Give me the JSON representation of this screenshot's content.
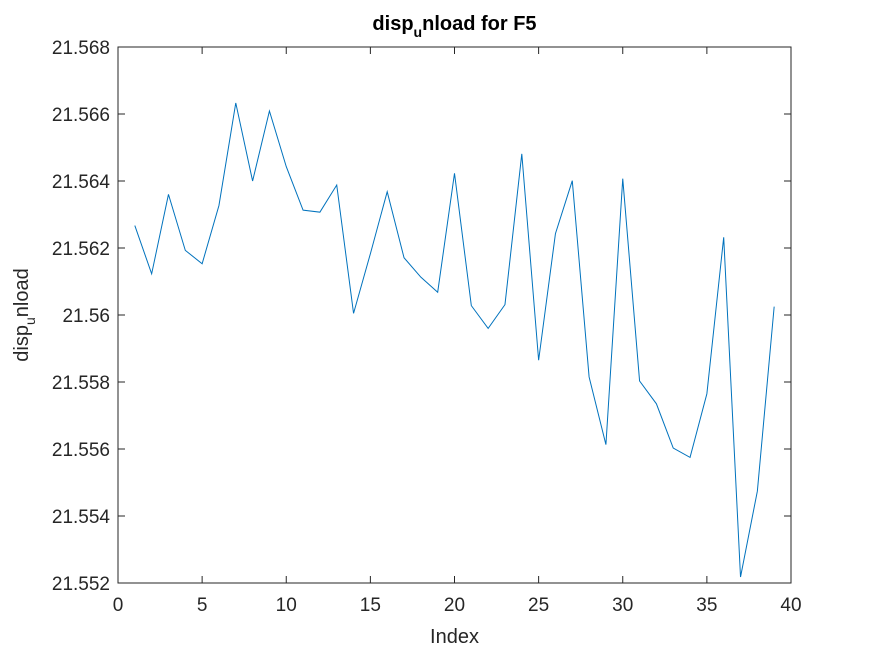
{
  "chart_data": {
    "type": "line",
    "title": {
      "main": "disp",
      "sub": "u",
      "rest": "nload for F5"
    },
    "xlabel": "Index",
    "ylabel": {
      "main": "disp",
      "sub": "u",
      "rest": "nload"
    },
    "xlim": [
      0,
      40
    ],
    "ylim": [
      21.552,
      21.568
    ],
    "xticks": [
      0,
      5,
      10,
      15,
      20,
      25,
      30,
      35,
      40
    ],
    "yticks": [
      21.552,
      21.554,
      21.556,
      21.558,
      21.56,
      21.562,
      21.564,
      21.566,
      21.568
    ],
    "xtick_labels": [
      "0",
      "5",
      "10",
      "15",
      "20",
      "25",
      "30",
      "35",
      "40"
    ],
    "ytick_labels": [
      "21.552",
      "21.554",
      "21.556",
      "21.558",
      "21.56",
      "21.562",
      "21.564",
      "21.566",
      "21.568"
    ],
    "grid": false,
    "series": [
      {
        "color": "#0072BD",
        "x": [
          1,
          2,
          3,
          4,
          5,
          6,
          7,
          8,
          9,
          10,
          11,
          12,
          13,
          14,
          15,
          16,
          17,
          18,
          19,
          20,
          21,
          22,
          23,
          24,
          25,
          26,
          27,
          28,
          29,
          30,
          31,
          32,
          33,
          34,
          35,
          36,
          37,
          38,
          39
        ],
        "y": [
          21.56267,
          21.56123,
          21.5636,
          21.56193,
          21.56153,
          21.56327,
          21.56633,
          21.564,
          21.56609,
          21.56443,
          21.56313,
          21.56307,
          21.56388,
          21.56005,
          21.56183,
          21.56368,
          21.56171,
          21.56113,
          21.56068,
          21.56423,
          21.56028,
          21.5596,
          21.56031,
          21.56481,
          21.55865,
          21.56243,
          21.56401,
          21.55815,
          21.55613,
          21.56407,
          21.55803,
          21.55735,
          21.55603,
          21.55575,
          21.55765,
          21.56232,
          21.55218,
          21.55474,
          21.56025
        ]
      }
    ]
  }
}
